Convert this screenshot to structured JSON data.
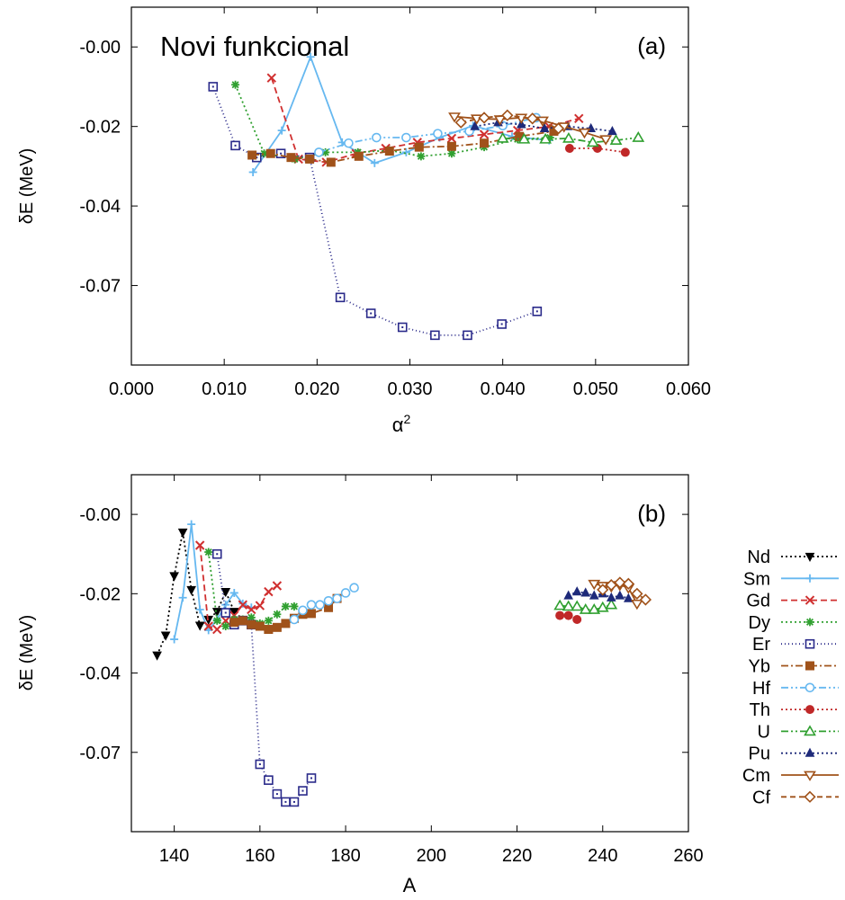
{
  "chart_data": [
    {
      "type": "line",
      "panel_label": "(a)",
      "annotation": "Novi funkcional",
      "xlabel": "α",
      "xlabel_sup": "2",
      "ylabel": "δE (MeV)",
      "xlim": [
        0,
        0.06
      ],
      "ylim": [
        -0.08,
        0.01
      ],
      "xticks": [
        "0.000",
        "0.010",
        "0.020",
        "0.030",
        "0.040",
        "0.050",
        "0.060"
      ],
      "yticks": [
        "-0.00",
        "-0.02",
        "-0.04",
        "-0.07"
      ],
      "series": [
        {
          "key": "Nd",
          "x": [],
          "y": []
        },
        {
          "key": "Sm",
          "x": [
            0.0131,
            0.0162,
            0.0193,
            0.0227,
            0.0262,
            0.0296,
            0.0332,
            0.0368,
            0.041,
            0.045
          ],
          "y": [
            -0.0315,
            -0.021,
            -0.0025,
            -0.024,
            -0.0292,
            -0.0265,
            -0.0228,
            -0.0198,
            -0.0225,
            -0.0235
          ]
        },
        {
          "key": "Gd",
          "x": [
            0.0151,
            0.018,
            0.021,
            0.0242,
            0.0274,
            0.0308,
            0.0345,
            0.038,
            0.0416,
            0.045,
            0.0482
          ],
          "y": [
            -0.0078,
            -0.0282,
            -0.029,
            -0.0268,
            -0.0255,
            -0.024,
            -0.023,
            -0.022,
            -0.021,
            -0.02,
            -0.018
          ]
        },
        {
          "key": "Dy",
          "x": [
            0.0112,
            0.0143,
            0.0176,
            0.0209,
            0.0244,
            0.0278,
            0.0312,
            0.0345,
            0.038,
            0.0416,
            0.0451
          ],
          "y": [
            -0.0095,
            -0.0268,
            -0.0282,
            -0.0265,
            -0.0265,
            -0.026,
            -0.0275,
            -0.0268,
            -0.0252,
            -0.0232,
            -0.0228
          ]
        },
        {
          "key": "Er",
          "x": [
            0.0088,
            0.0112,
            0.0135,
            0.0161,
            0.0192,
            0.0225,
            0.0258,
            0.0292,
            0.0327,
            0.0362,
            0.0399,
            0.0437
          ],
          "y": [
            -0.01,
            -0.0248,
            -0.0278,
            -0.0268,
            -0.0278,
            -0.063,
            -0.067,
            -0.0705,
            -0.0725,
            -0.0725,
            -0.0697,
            -0.0665
          ]
        },
        {
          "key": "Yb",
          "x": [
            0.013,
            0.015,
            0.0172,
            0.0192,
            0.0215,
            0.0245,
            0.0278,
            0.031,
            0.0345,
            0.038,
            0.0418,
            0.0455
          ],
          "y": [
            -0.0272,
            -0.0268,
            -0.0278,
            -0.0282,
            -0.029,
            -0.0275,
            -0.0262,
            -0.0252,
            -0.025,
            -0.0242,
            -0.0225,
            -0.0212
          ]
        },
        {
          "key": "Hf",
          "x": [
            0.0202,
            0.0234,
            0.0264,
            0.0296,
            0.033,
            0.0364,
            0.04,
            0.0436
          ],
          "y": [
            -0.0265,
            -0.0242,
            -0.0228,
            -0.0228,
            -0.0218,
            -0.0212,
            -0.0198,
            -0.0178
          ]
        },
        {
          "key": "Th",
          "x": [
            0.0472,
            0.0502,
            0.0532
          ],
          "y": [
            -0.0255,
            -0.0255,
            -0.0265
          ]
        },
        {
          "key": "U",
          "x": [
            0.04,
            0.0423,
            0.0446,
            0.0471,
            0.0497,
            0.0522,
            0.0546
          ],
          "y": [
            -0.023,
            -0.0232,
            -0.0232,
            -0.023,
            -0.024,
            -0.0235,
            -0.0228
          ]
        },
        {
          "key": "Pu",
          "x": [
            0.037,
            0.0395,
            0.042,
            0.0445,
            0.047,
            0.0495,
            0.0518
          ],
          "y": [
            -0.02,
            -0.019,
            -0.0195,
            -0.0205,
            -0.02,
            -0.0205,
            -0.0212
          ]
        },
        {
          "key": "Cm",
          "x": [
            0.0348,
            0.0372,
            0.0397,
            0.042,
            0.0443,
            0.0466,
            0.0488,
            0.0511
          ],
          "y": [
            -0.0175,
            -0.018,
            -0.0182,
            -0.0178,
            -0.0185,
            -0.02,
            -0.0215,
            -0.0232
          ]
        },
        {
          "key": "Cf",
          "x": [
            0.0355,
            0.038,
            0.0405,
            0.0432,
            0.046
          ],
          "y": [
            -0.019,
            -0.0178,
            -0.0172,
            -0.018,
            -0.0205
          ]
        }
      ]
    },
    {
      "type": "line",
      "panel_label": "(b)",
      "xlabel": "A",
      "ylabel": "δE (MeV)",
      "xlim": [
        130,
        260
      ],
      "ylim": [
        -0.08,
        0.01
      ],
      "xticks": [
        "140",
        "160",
        "180",
        "200",
        "220",
        "240",
        "260"
      ],
      "yticks": [
        "-0.00",
        "-0.02",
        "-0.04",
        "-0.07"
      ],
      "series": [
        {
          "key": "Nd",
          "x": [
            136,
            138,
            140,
            142,
            144,
            146,
            148,
            150,
            152,
            154,
            156
          ],
          "y": [
            -0.0355,
            -0.0305,
            -0.0155,
            -0.0045,
            -0.019,
            -0.028,
            -0.0265,
            -0.0245,
            -0.0195,
            -0.0245,
            -0.0265
          ]
        },
        {
          "key": "Sm",
          "x": [
            140,
            142,
            144,
            146,
            148,
            150,
            152,
            154,
            156,
            158
          ],
          "y": [
            -0.0315,
            -0.021,
            -0.0025,
            -0.024,
            -0.0292,
            -0.0265,
            -0.0228,
            -0.0198,
            -0.0225,
            -0.0235
          ]
        },
        {
          "key": "Gd",
          "x": [
            146,
            148,
            150,
            152,
            154,
            156,
            158,
            160,
            162,
            164
          ],
          "y": [
            -0.0078,
            -0.0282,
            -0.029,
            -0.0268,
            -0.0255,
            -0.0228,
            -0.024,
            -0.023,
            -0.0195,
            -0.018
          ]
        },
        {
          "key": "Dy",
          "x": [
            148,
            150,
            152,
            154,
            156,
            158,
            160,
            162,
            164,
            166,
            168
          ],
          "y": [
            -0.0095,
            -0.0268,
            -0.0282,
            -0.0265,
            -0.0265,
            -0.026,
            -0.0275,
            -0.0268,
            -0.0252,
            -0.0232,
            -0.0232
          ]
        },
        {
          "key": "Er",
          "x": [
            150,
            152,
            154,
            156,
            158,
            160,
            162,
            164,
            166,
            168,
            170,
            172
          ],
          "y": [
            -0.01,
            -0.0248,
            -0.0278,
            -0.0268,
            -0.0278,
            -0.063,
            -0.067,
            -0.0705,
            -0.0725,
            -0.0725,
            -0.0697,
            -0.0665
          ]
        },
        {
          "key": "Yb",
          "x": [
            154,
            156,
            158,
            160,
            162,
            164,
            166,
            168,
            170,
            172,
            176,
            178
          ],
          "y": [
            -0.0272,
            -0.0268,
            -0.0278,
            -0.0282,
            -0.029,
            -0.0285,
            -0.0275,
            -0.0262,
            -0.0252,
            -0.025,
            -0.0235,
            -0.0212
          ]
        },
        {
          "key": "Hf",
          "x": [
            168,
            170,
            172,
            174,
            176,
            178,
            180,
            182
          ],
          "y": [
            -0.0265,
            -0.0242,
            -0.0228,
            -0.0228,
            -0.0218,
            -0.0212,
            -0.0198,
            -0.0185
          ]
        },
        {
          "key": "Th",
          "x": [
            230,
            232,
            234
          ],
          "y": [
            -0.0255,
            -0.0255,
            -0.0265
          ]
        },
        {
          "key": "U",
          "x": [
            230,
            232,
            234,
            236,
            238,
            240,
            242
          ],
          "y": [
            -0.023,
            -0.0232,
            -0.0232,
            -0.024,
            -0.024,
            -0.0235,
            -0.0228
          ]
        },
        {
          "key": "Pu",
          "x": [
            232,
            234,
            236,
            238,
            240,
            242,
            244,
            246
          ],
          "y": [
            -0.0205,
            -0.0195,
            -0.0198,
            -0.0205,
            -0.02,
            -0.021,
            -0.0205,
            -0.0212
          ]
        },
        {
          "key": "Cm",
          "x": [
            238,
            240,
            242,
            244,
            246,
            248
          ],
          "y": [
            -0.0175,
            -0.018,
            -0.0182,
            -0.0178,
            -0.0185,
            -0.0225
          ]
        },
        {
          "key": "Cf",
          "x": [
            240,
            242,
            244,
            246,
            248,
            250
          ],
          "y": [
            -0.019,
            -0.0178,
            -0.0172,
            -0.0175,
            -0.02,
            -0.0215
          ]
        }
      ]
    }
  ],
  "legend": [
    {
      "label": "Nd",
      "color": "#000000",
      "dash": "2,3",
      "marker": "tri-down-filled"
    },
    {
      "label": "Sm",
      "color": "#66b8f0",
      "dash": "",
      "marker": "plus"
    },
    {
      "label": "Gd",
      "color": "#d03030",
      "dash": "7,4",
      "marker": "cross"
    },
    {
      "label": "Dy",
      "color": "#30a030",
      "dash": "2,3",
      "marker": "star"
    },
    {
      "label": "Er",
      "color": "#2a2a8a",
      "dash": "1,3",
      "marker": "square-dot"
    },
    {
      "label": "Yb",
      "color": "#a0521a",
      "dash": "8,3,2,3",
      "marker": "square-filled"
    },
    {
      "label": "Hf",
      "color": "#66b8f0",
      "dash": "8,3,2,3,2,3",
      "marker": "circle-open"
    },
    {
      "label": "Th",
      "color": "#c02828",
      "dash": "2,3",
      "marker": "circle-filled"
    },
    {
      "label": "U",
      "color": "#30a030",
      "dash": "8,3,2,3,2,3",
      "marker": "tri-up-open"
    },
    {
      "label": "Pu",
      "color": "#1e2a7a",
      "dash": "2,3",
      "marker": "tri-up-filled"
    },
    {
      "label": "Cm",
      "color": "#a0521a",
      "dash": "",
      "marker": "tri-down-open"
    },
    {
      "label": "Cf",
      "color": "#a0521a",
      "dash": "6,4",
      "marker": "diamond-open"
    }
  ]
}
